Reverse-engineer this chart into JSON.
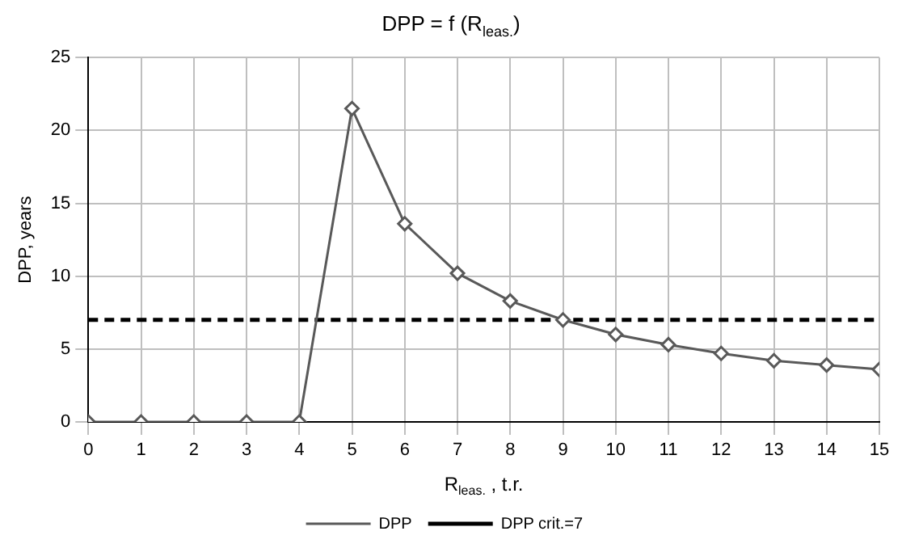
{
  "chart_data": {
    "type": "line",
    "title": "DPP = f (R$_{leas.}$)",
    "xlabel": "R$_{leas.}$ , t.r.",
    "ylabel": "DPP, years",
    "x": [
      0,
      1,
      2,
      3,
      4,
      5,
      6,
      7,
      8,
      9,
      10,
      11,
      12,
      13,
      14,
      15
    ],
    "series": [
      {
        "name": "DPP",
        "color": "#595959",
        "marker": "diamond",
        "line_style": "solid",
        "values": [
          0,
          0,
          0,
          0,
          0,
          21.5,
          13.6,
          10.2,
          8.3,
          7.0,
          6.0,
          5.3,
          4.7,
          4.2,
          3.9,
          3.6
        ]
      },
      {
        "name": "DPP crit.=7",
        "color": "#000000",
        "marker": "none",
        "line_style": "dashed",
        "values": [
          7,
          7,
          7,
          7,
          7,
          7,
          7,
          7,
          7,
          7,
          7,
          7,
          7,
          7,
          7,
          7
        ]
      }
    ],
    "xlim": [
      0,
      15
    ],
    "xticks": [
      0,
      1,
      2,
      3,
      4,
      5,
      6,
      7,
      8,
      9,
      10,
      11,
      12,
      13,
      14,
      15
    ],
    "ylim": [
      0,
      25
    ],
    "yticks": [
      0,
      5,
      10,
      15,
      20,
      25
    ],
    "grid": true,
    "legend": "bottom"
  }
}
